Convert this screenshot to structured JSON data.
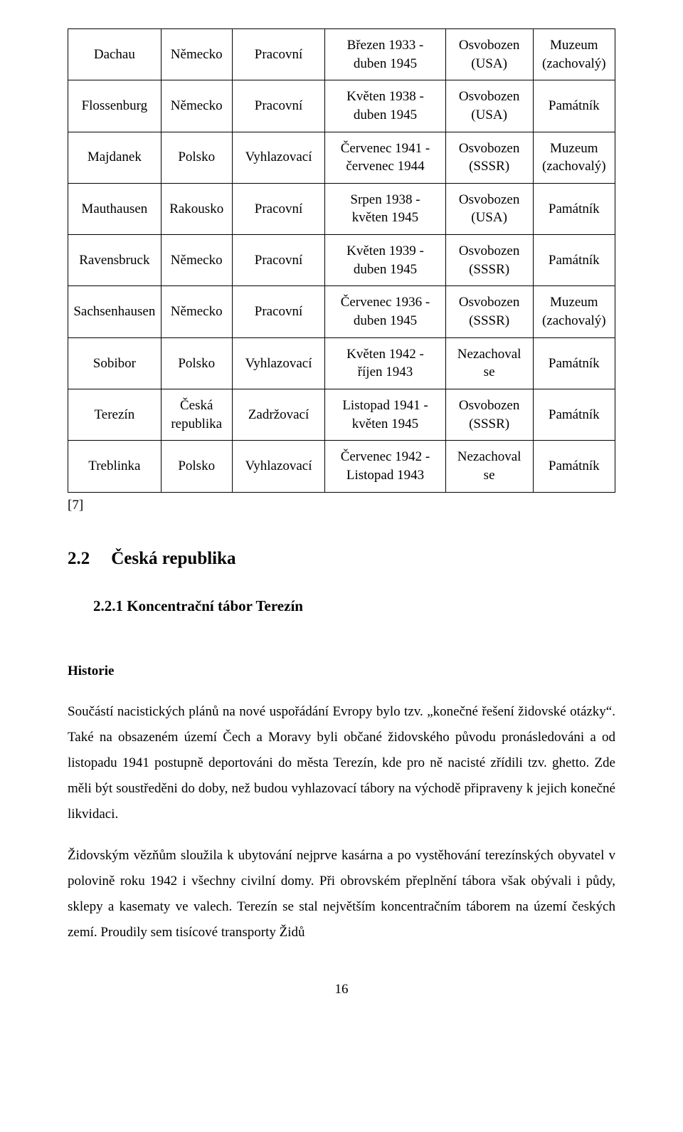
{
  "table": {
    "rows": [
      {
        "name": "Dachau",
        "country": "Německo",
        "type": "Pracovní",
        "dates": "Březen 1933 -\nduben 1945",
        "liberation": "Osvobozen\n(USA)",
        "memorial": "Muzeum\n(zachovalý)"
      },
      {
        "name": "Flossenburg",
        "country": "Německo",
        "type": "Pracovní",
        "dates": "Květen 1938 -\nduben 1945",
        "liberation": "Osvobozen\n(USA)",
        "memorial": "Památník"
      },
      {
        "name": "Majdanek",
        "country": "Polsko",
        "type": "Vyhlazovací",
        "dates": "Červenec 1941 -\nčervenec 1944",
        "liberation": "Osvobozen\n(SSSR)",
        "memorial": "Muzeum\n(zachovalý)"
      },
      {
        "name": "Mauthausen",
        "country": "Rakousko",
        "type": "Pracovní",
        "dates": "Srpen 1938 -\nkvěten 1945",
        "liberation": "Osvobozen\n(USA)",
        "memorial": "Památník"
      },
      {
        "name": "Ravensbruck",
        "country": "Německo",
        "type": "Pracovní",
        "dates": "Květen 1939 -\nduben 1945",
        "liberation": "Osvobozen\n(SSSR)",
        "memorial": "Památník"
      },
      {
        "name": "Sachsenhausen",
        "country": "Německo",
        "type": "Pracovní",
        "dates": "Červenec 1936 -\nduben 1945",
        "liberation": "Osvobozen\n(SSSR)",
        "memorial": "Muzeum\n(zachovalý)"
      },
      {
        "name": "Sobibor",
        "country": "Polsko",
        "type": "Vyhlazovací",
        "dates": "Květen 1942 -\nříjen 1943",
        "liberation": "Nezachoval\nse",
        "memorial": "Památník"
      },
      {
        "name": "Terezín",
        "country": "Česká\nrepublika",
        "type": "Zadržovací",
        "dates": "Listopad 1941 -\nkvěten 1945",
        "liberation": "Osvobozen\n(SSSR)",
        "memorial": "Památník"
      },
      {
        "name": "Treblinka",
        "country": "Polsko",
        "type": "Vyhlazovací",
        "dates": "Červenec 1942 -\nListopad 1943",
        "liberation": "Nezachoval\nse",
        "memorial": "Památník"
      }
    ]
  },
  "citation": "[7]",
  "h2_num": "2.2",
  "h2_text": "Česká republika",
  "h3": "2.2.1  Koncentrační tábor Terezín",
  "h4": "Historie",
  "p1": "Součástí nacistických plánů na nové uspořádání Evropy bylo tzv. „konečné řešení židovské otázky“. Také na obsazeném území Čech a Moravy byli občané židovského původu pronásledováni a od listopadu 1941 postupně deportováni do města Terezín, kde pro ně nacisté zřídili tzv. ghetto. Zde měli být soustředěni do doby, než budou vyhlazovací tábory na východě připraveny k jejich konečné likvidaci.",
  "p2": "Židovským vězňům sloužila k ubytování nejprve kasárna a po vystěhování terezínských obyvatel v polovině roku 1942 i všechny civilní domy. Při obrovském přeplnění tábora však obývali i půdy, sklepy a kasematy ve valech. Terezín se stal největším koncentračním táborem na území českých zemí. Proudily sem tisícové transporty Židů",
  "page_number": "16"
}
